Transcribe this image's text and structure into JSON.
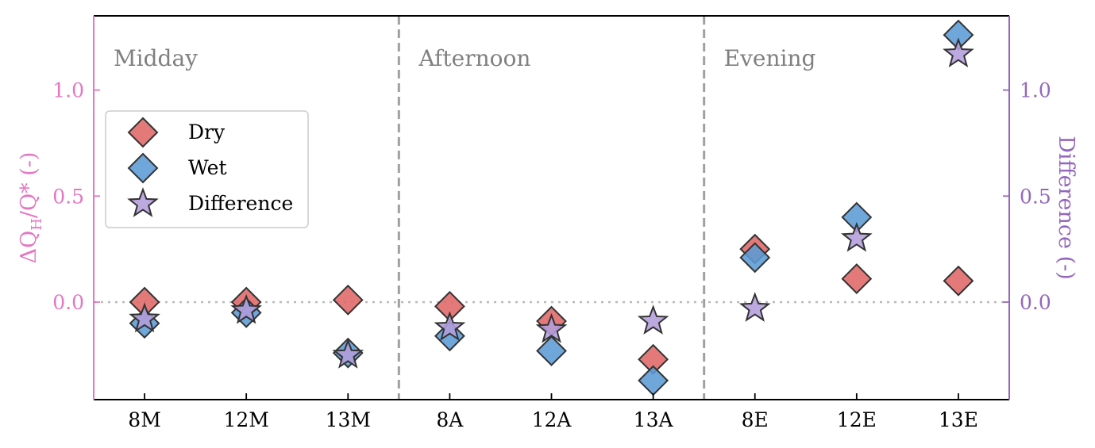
{
  "chart_data": {
    "type": "scatter",
    "categories": [
      "8M",
      "12M",
      "13M",
      "8A",
      "12A",
      "13A",
      "8E",
      "12E",
      "13E"
    ],
    "regions": [
      {
        "name": "Midday",
        "start": 0,
        "end": 2
      },
      {
        "name": "Afternoon",
        "start": 3,
        "end": 5
      },
      {
        "name": "Evening",
        "start": 6,
        "end": 8
      }
    ],
    "ylabel_left_parts": {
      "pre": "ΔQ",
      "sub": "H",
      "post": "/Q* (-)"
    },
    "ylabel_right": "Difference (-)",
    "ylim": [
      -0.46,
      1.35
    ],
    "yticks": [
      0.0,
      0.5,
      1.0
    ],
    "ytick_labels": [
      "0.0",
      "0.5",
      "1.0"
    ],
    "series": [
      {
        "name": "Dry",
        "marker": "diamond",
        "color": "#e06666",
        "values": [
          0.0,
          0.0,
          0.01,
          -0.02,
          -0.09,
          -0.27,
          0.25,
          0.11,
          0.1
        ]
      },
      {
        "name": "Wet",
        "marker": "diamond",
        "color": "#5b9bd5",
        "values": [
          -0.1,
          -0.05,
          -0.24,
          -0.16,
          -0.23,
          -0.37,
          0.21,
          0.4,
          1.26
        ]
      },
      {
        "name": "Difference",
        "marker": "star",
        "color": "#b39ddb",
        "values": [
          -0.08,
          -0.04,
          -0.25,
          -0.12,
          -0.13,
          -0.09,
          -0.03,
          0.3,
          1.17
        ]
      }
    ],
    "zero_line": true,
    "legend_position": "middle-left",
    "colors": {
      "left_axis": "#e377c2",
      "right_axis": "#9467bd",
      "divider": "#a0a0a0",
      "zero_line": "#bbbbbb"
    }
  }
}
